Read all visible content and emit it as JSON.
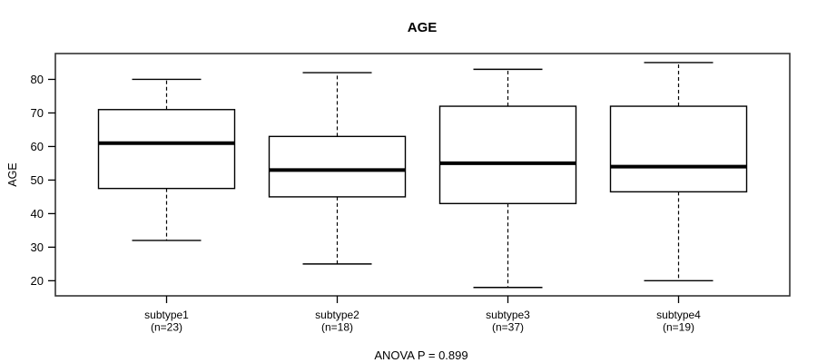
{
  "chart_data": {
    "type": "boxplot",
    "title": "AGE",
    "xlabel": "",
    "ylabel": "AGE",
    "annotation": "ANOVA P = 0.899",
    "ylim": [
      15.5,
      87.7
    ],
    "yticks": [
      20,
      30,
      40,
      50,
      60,
      70,
      80
    ],
    "grid": false,
    "legend": "none",
    "categories": [
      "subtype1",
      "subtype2",
      "subtype3",
      "subtype4"
    ],
    "category_sublabels": [
      "(n=23)",
      "(n=18)",
      "(n=37)",
      "(n=19)"
    ],
    "series": [
      {
        "name": "subtype1",
        "n": 23,
        "whisker_low": 32,
        "q1": 47.5,
        "median": 61,
        "q3": 71,
        "whisker_high": 80,
        "outliers": []
      },
      {
        "name": "subtype2",
        "n": 18,
        "whisker_low": 25,
        "q1": 45,
        "median": 53,
        "q3": 63,
        "whisker_high": 82,
        "outliers": []
      },
      {
        "name": "subtype3",
        "n": 37,
        "whisker_low": 18,
        "q1": 43,
        "median": 55,
        "q3": 72,
        "whisker_high": 83,
        "outliers": []
      },
      {
        "name": "subtype4",
        "n": 19,
        "whisker_low": 20,
        "q1": 46.5,
        "median": 54,
        "q3": 72,
        "whisker_high": 85,
        "outliers": []
      }
    ],
    "colors": {
      "background": "#ffffff",
      "box_fill": "#ffffff",
      "stroke": "#000000",
      "frame_stroke": "#333333"
    }
  }
}
